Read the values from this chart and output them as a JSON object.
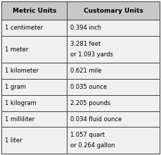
{
  "title_col1": "Metric Units",
  "title_col2": "Customary Units",
  "rows": [
    {
      "metric": "1 centimeter",
      "customary": "0.394 inch",
      "two_line": false
    },
    {
      "metric": "1 meter",
      "customary": "3.281 feet\nor 1.093 yards",
      "two_line": true
    },
    {
      "metric": "1 kilometer",
      "customary": "0.621 mile",
      "two_line": false
    },
    {
      "metric": "1 gram",
      "customary": "0.035 ounce",
      "two_line": false
    },
    {
      "metric": "1 kilogram",
      "customary": "2.205 pounds",
      "two_line": false
    },
    {
      "metric": "1 milliliter",
      "customary": "0.034 fluid ounce",
      "two_line": false
    },
    {
      "metric": "1 liter",
      "customary": "1.057 quart\nor 0.264 gallon",
      "two_line": true
    }
  ],
  "header_bg": "#c8c8c8",
  "row_bg": "#f0f0f0",
  "border_color": "#444444",
  "text_color": "#000000",
  "header_fontsize": 6.5,
  "body_fontsize": 6.0,
  "col_split": 0.415,
  "fig_width": 2.29,
  "fig_height": 2.2,
  "dpi": 100
}
